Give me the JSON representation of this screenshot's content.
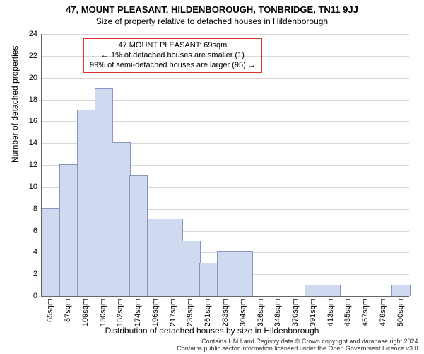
{
  "header": {
    "line1": "47, MOUNT PLEASANT, HILDENBOROUGH, TONBRIDGE, TN11 9JJ",
    "line2": "Size of property relative to detached houses in Hildenborough"
  },
  "chart": {
    "type": "bar",
    "categories": [
      "65sqm",
      "87sqm",
      "109sqm",
      "130sqm",
      "152sqm",
      "174sqm",
      "196sqm",
      "217sqm",
      "239sqm",
      "261sqm",
      "283sqm",
      "304sqm",
      "326sqm",
      "348sqm",
      "370sqm",
      "391sqm",
      "413sqm",
      "435sqm",
      "457sqm",
      "478sqm",
      "500sqm"
    ],
    "values": [
      8,
      12,
      17,
      19,
      14,
      11,
      7,
      7,
      5,
      3,
      4,
      4,
      0,
      0,
      0,
      1,
      1,
      0,
      0,
      0,
      1
    ],
    "bar_fill": "#cfd9ef",
    "bar_border": "#8a96c0",
    "grid_color": "#d7d7d7",
    "axis_color": "#666666",
    "ylim": [
      0,
      24
    ],
    "ytick_step": 2,
    "ylabel": "Number of detached properties",
    "xlabel": "Distribution of detached houses by size in Hildenborough",
    "title_fontsize": 13,
    "subtitle_fontsize": 12,
    "tick_fontsize": 11,
    "label_fontsize": 12,
    "background_color": "#ffffff"
  },
  "annotation": {
    "line1": "47 MOUNT PLEASANT: 69sqm",
    "line2": "← 1% of detached houses are smaller (1)",
    "line3": "99% of semi-detached houses are larger (95) →",
    "border_color": "#d33",
    "fontsize": 11
  },
  "footer": {
    "line1": "Contains HM Land Registry data © Crown copyright and database right 2024.",
    "line2": "Contains public sector information licensed under the Open Government Licence v3.0.",
    "fontsize": 9,
    "color": "#333333"
  }
}
